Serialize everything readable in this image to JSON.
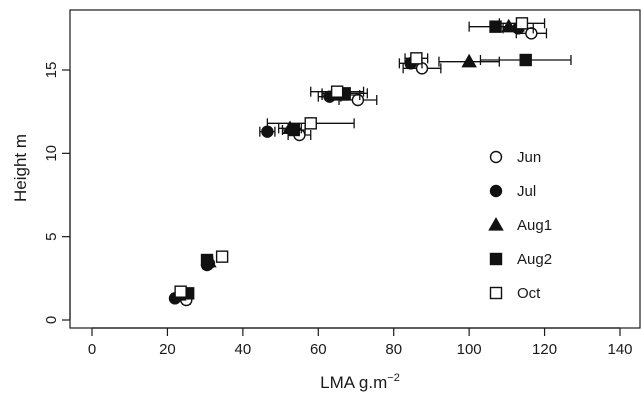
{
  "chart_data": {
    "type": "scatter",
    "title": "",
    "xlabel": "LMA g.m",
    "xlabel_sup": "−2",
    "ylabel": "Height  m",
    "xlim": [
      -4,
      145
    ],
    "ylim": [
      -0.5,
      18.5
    ],
    "xticks": [
      0,
      20,
      40,
      60,
      80,
      100,
      120,
      140
    ],
    "yticks": [
      0,
      5,
      10,
      15
    ],
    "grid": false,
    "legend_position": "right",
    "error_bars": "horizontal",
    "series": [
      {
        "name": "Jun",
        "marker": "open-circle",
        "points": [
          {
            "x": 25,
            "y": 1.2,
            "err": 1.0
          },
          {
            "x": 31,
            "y": 3.4,
            "err": 1.0
          },
          {
            "x": 55,
            "y": 11.1,
            "err": 3.0
          },
          {
            "x": 70.5,
            "y": 13.2,
            "err": 5.0
          },
          {
            "x": 87.5,
            "y": 15.1,
            "err": 5.0
          },
          {
            "x": 116.5,
            "y": 17.2,
            "err": 4.0
          }
        ]
      },
      {
        "name": "Jul",
        "marker": "filled-circle",
        "points": [
          {
            "x": 22,
            "y": 1.3,
            "err": 0.8
          },
          {
            "x": 30.5,
            "y": 3.3,
            "err": 1.0
          },
          {
            "x": 46.5,
            "y": 11.3,
            "err": 2.0
          },
          {
            "x": 63,
            "y": 13.4,
            "err": 3.0
          },
          {
            "x": 84.5,
            "y": 15.4,
            "err": 3.0
          },
          {
            "x": 113,
            "y": 17.5,
            "err": 4.0
          }
        ]
      },
      {
        "name": "Aug1",
        "marker": "filled-triangle",
        "points": [
          {
            "x": 23,
            "y": 1.5,
            "err": 0.8
          },
          {
            "x": 31,
            "y": 3.5,
            "err": 1.0
          },
          {
            "x": 52.5,
            "y": 11.5,
            "err": 3.0
          },
          {
            "x": 66,
            "y": 13.5,
            "err": 5.0
          },
          {
            "x": 100,
            "y": 15.5,
            "err": 8.0
          },
          {
            "x": 110.5,
            "y": 17.6,
            "err": 4.0
          }
        ]
      },
      {
        "name": "Aug2",
        "marker": "filled-square",
        "points": [
          {
            "x": 25.5,
            "y": 1.6,
            "err": 0.8
          },
          {
            "x": 30.5,
            "y": 3.6,
            "err": 1.0
          },
          {
            "x": 53.5,
            "y": 11.4,
            "err": 3.0
          },
          {
            "x": 67,
            "y": 13.6,
            "err": 6.0
          },
          {
            "x": 115,
            "y": 15.6,
            "err": 12.0
          },
          {
            "x": 107,
            "y": 17.6,
            "err": 7.0
          }
        ]
      },
      {
        "name": "Oct",
        "marker": "open-square",
        "points": [
          {
            "x": 23.5,
            "y": 1.7,
            "err": 0.8
          },
          {
            "x": 34.5,
            "y": 3.8,
            "err": 1.0
          },
          {
            "x": 58,
            "y": 11.8,
            "err": 11.5
          },
          {
            "x": 65,
            "y": 13.7,
            "err": 7.0
          },
          {
            "x": 86,
            "y": 15.7,
            "err": 3.0
          },
          {
            "x": 114,
            "y": 17.8,
            "err": 6.0
          }
        ]
      }
    ]
  }
}
